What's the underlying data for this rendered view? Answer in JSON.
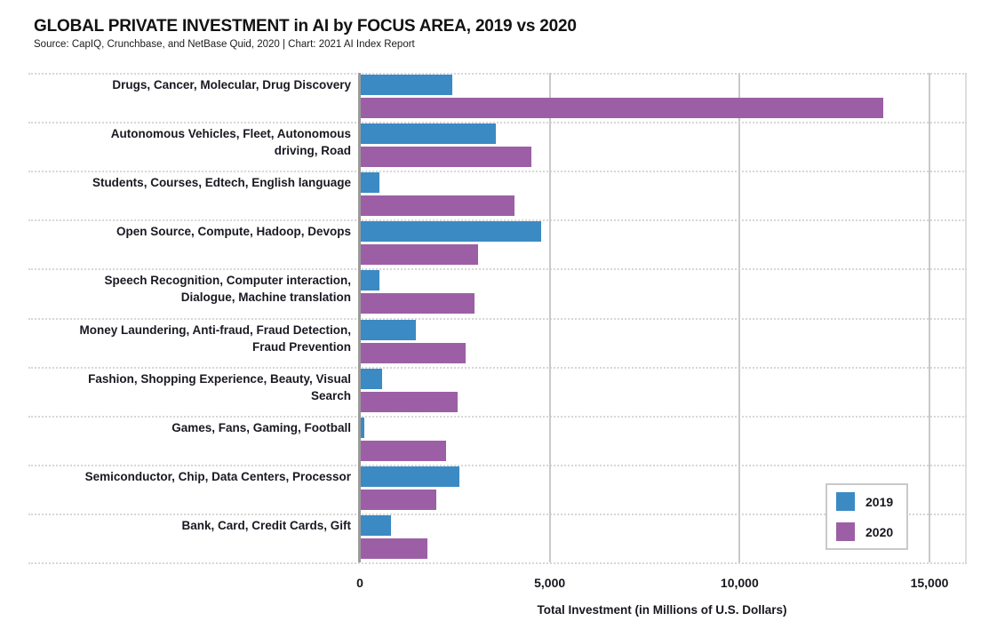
{
  "header": {
    "title": "GLOBAL PRIVATE INVESTMENT in AI by FOCUS AREA, 2019 vs 2020",
    "source": "Source: CapIQ, Crunchbase, and NetBase Quid, 2020 | Chart: 2021 AI Index Report"
  },
  "colors": {
    "series_2019": "#3B8AC4",
    "series_2020": "#9C5FA5",
    "axis_line": "#9a9a9a",
    "gridline": "#c9c9c9"
  },
  "legend": {
    "items": [
      {
        "label": "2019",
        "color": "#3B8AC4"
      },
      {
        "label": "2020",
        "color": "#9C5FA5"
      }
    ]
  },
  "chart_data": {
    "type": "bar",
    "orientation": "horizontal",
    "title": "GLOBAL PRIVATE INVESTMENT in AI by FOCUS AREA, 2019 vs 2020",
    "subtitle": "Source: CapIQ, Crunchbase, and NetBase Quid, 2020 | Chart: 2021 AI Index Report",
    "xlabel": "Total Investment (in Millions of U.S. Dollars)",
    "xlim": [
      0,
      16000
    ],
    "grid": "vertical",
    "legend_position": "right-center",
    "x_ticks": [
      {
        "value": 0,
        "label": "0"
      },
      {
        "value": 5000,
        "label": "5,000"
      },
      {
        "value": 10000,
        "label": "10,000"
      },
      {
        "value": 15000,
        "label": "15,000"
      }
    ],
    "categories": [
      "Drugs, Cancer, Molecular, Drug Discovery",
      "Autonomous Vehicles, Fleet, Autonomous driving, Road",
      "Students, Courses, Edtech, English language",
      "Open Source, Compute, Hadoop, Devops",
      "Speech Recognition, Computer interaction, Dialogue, Machine translation",
      "Money Laundering, Anti-fraud, Fraud Detection, Fraud Prevention",
      "Fashion, Shopping Experience, Beauty, Visual Search",
      "Games, Fans, Gaming, Football",
      "Semiconductor, Chip, Data Centers, Processor",
      "Bank, Card, Credit Cards, Gift"
    ],
    "category_label_lines": [
      [
        "Drugs, Cancer, Molecular, Drug Discovery"
      ],
      [
        "Autonomous Vehicles, Fleet, Autonomous",
        "driving, Road"
      ],
      [
        "Students, Courses, Edtech, English language"
      ],
      [
        "Open Source, Compute, Hadoop, Devops"
      ],
      [
        "Speech Recognition, Computer interaction,",
        "Dialogue, Machine translation"
      ],
      [
        "Money Laundering, Anti-fraud, Fraud Detection,",
        "Fraud Prevention"
      ],
      [
        "Fashion, Shopping Experience, Beauty, Visual",
        "Search"
      ],
      [
        "Games, Fans, Gaming, Football"
      ],
      [
        "Semiconductor, Chip, Data Centers, Processor"
      ],
      [
        "Bank, Card, Credit Cards, Gift"
      ]
    ],
    "series": [
      {
        "name": "2019",
        "color": "#3B8AC4",
        "values": [
          2400,
          3550,
          500,
          4750,
          500,
          1450,
          550,
          100,
          2600,
          800
        ]
      },
      {
        "name": "2020",
        "color": "#9C5FA5",
        "values": [
          13750,
          4500,
          4050,
          3100,
          3000,
          2750,
          2550,
          2250,
          2000,
          1750
        ]
      }
    ]
  }
}
